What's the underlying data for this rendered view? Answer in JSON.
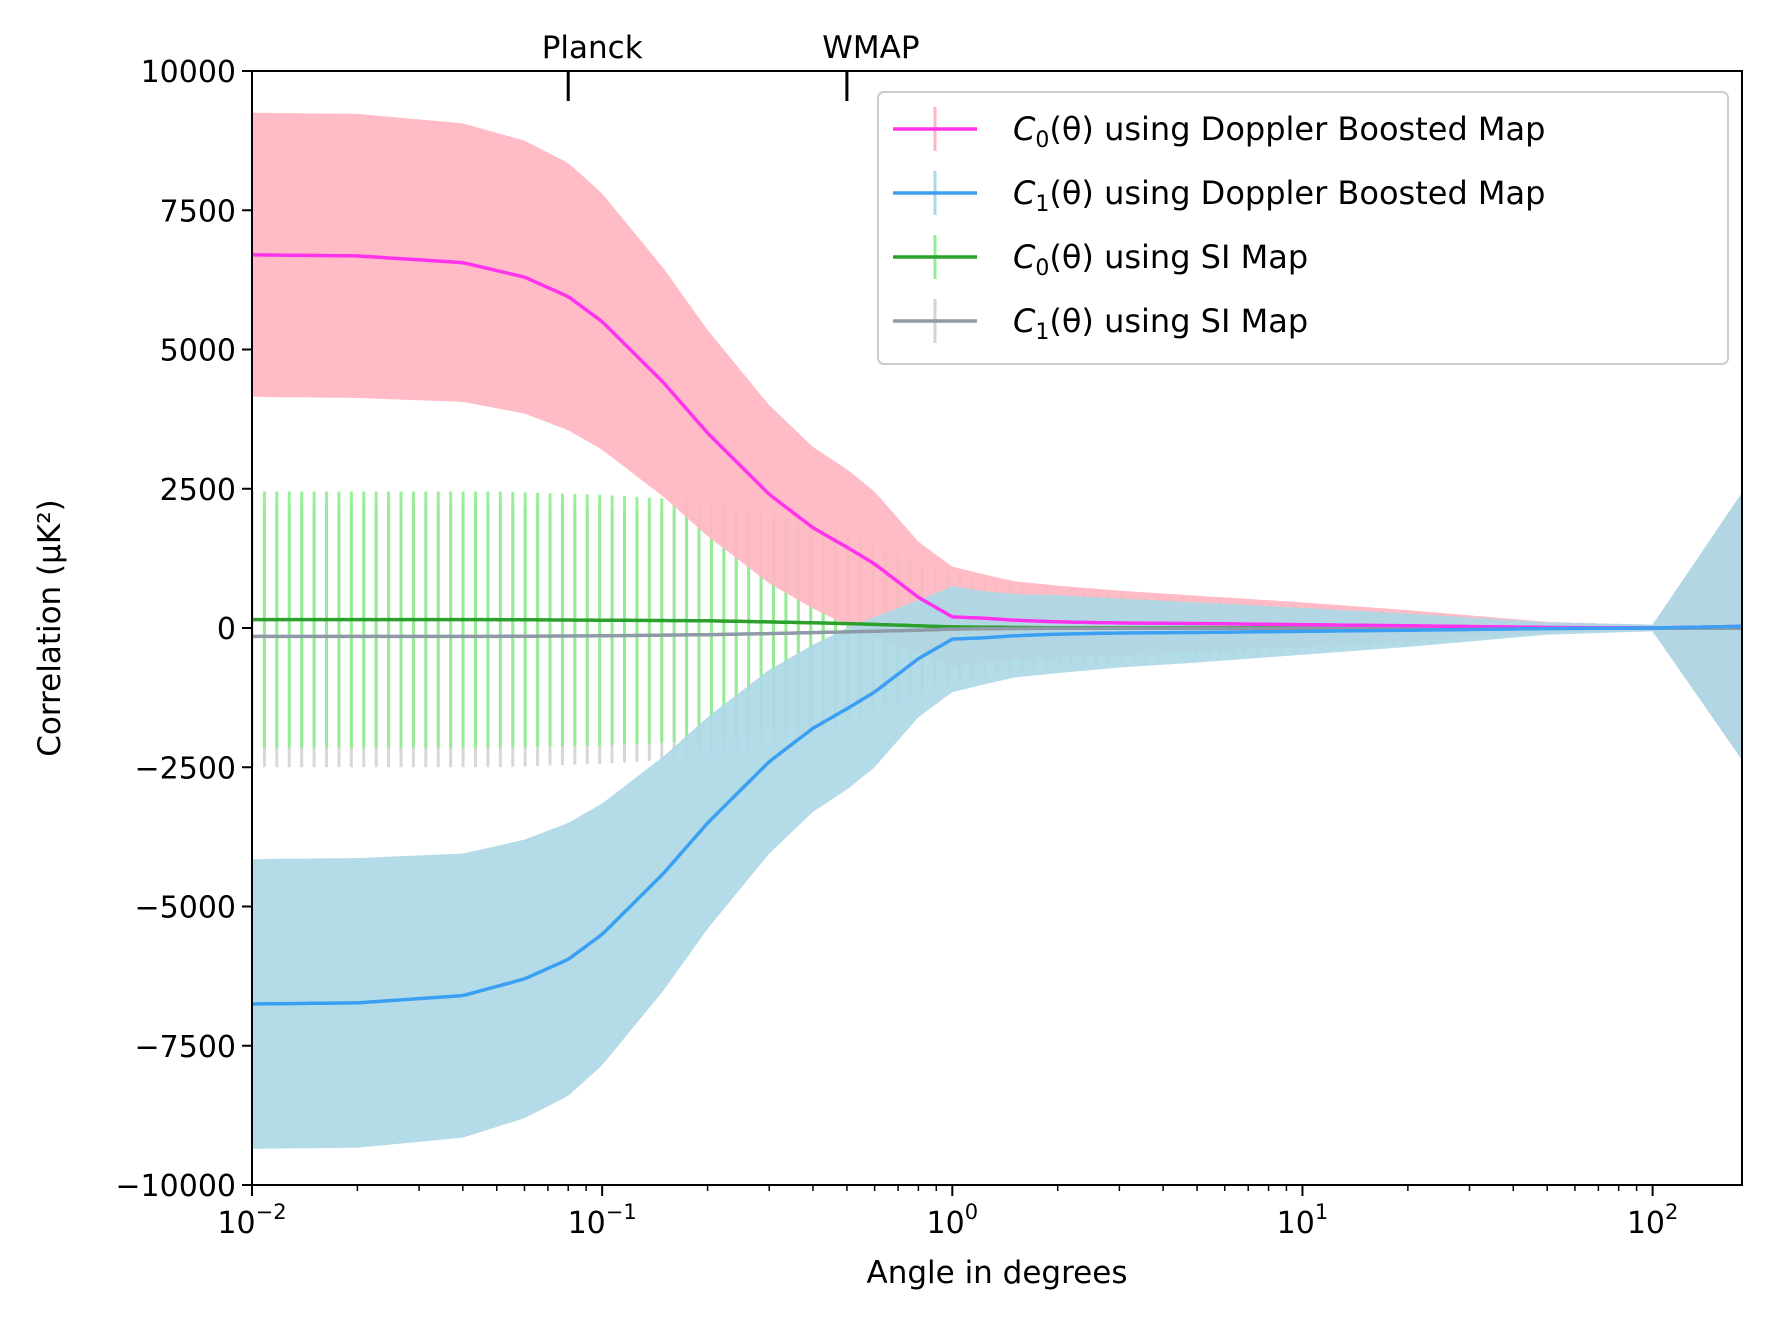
{
  "chart_data": {
    "type": "line",
    "title": "",
    "xlabel": "Angle in degrees",
    "ylabel": "Correlation (μK²)",
    "xscale": "log",
    "xlim": [
      0.01,
      180
    ],
    "ylim": [
      -10000,
      10000
    ],
    "yticks": [
      {
        "value": 10000,
        "label": "10000"
      },
      {
        "value": 7500,
        "label": "7500"
      },
      {
        "value": 5000,
        "label": "5000"
      },
      {
        "value": 2500,
        "label": "2500"
      },
      {
        "value": 0,
        "label": "0"
      },
      {
        "value": -2500,
        "label": "−2500"
      },
      {
        "value": -5000,
        "label": "−5000"
      },
      {
        "value": -7500,
        "label": "−7500"
      },
      {
        "value": -10000,
        "label": "−10000"
      }
    ],
    "xticks": [
      {
        "value": 0.01,
        "base": "10",
        "exp": "−2"
      },
      {
        "value": 0.1,
        "base": "10",
        "exp": "−1"
      },
      {
        "value": 1,
        "base": "10",
        "exp": "0"
      },
      {
        "value": 10,
        "base": "10",
        "exp": "1"
      },
      {
        "value": 100,
        "base": "10",
        "exp": "2"
      }
    ],
    "top_markers": [
      {
        "label": "Planck",
        "x": 0.08
      },
      {
        "label": "WMAP",
        "x": 0.5
      }
    ],
    "legend_position": "top-right",
    "series": [
      {
        "name": "C0(θ) using Doppler Boosted Map",
        "legend_sym": "C",
        "legend_sub": "0",
        "legend_rest": "(θ) using Doppler Boosted Map",
        "color": "#ff33ee",
        "band_color": "#ffb6c1",
        "band_style": "fill",
        "x": [
          0.01,
          0.02,
          0.04,
          0.06,
          0.08,
          0.1,
          0.15,
          0.2,
          0.3,
          0.4,
          0.5,
          0.6,
          0.8,
          1.0,
          1.2,
          1.5,
          2,
          3,
          5,
          10,
          20,
          50,
          100,
          180
        ],
        "y": [
          6700,
          6680,
          6560,
          6300,
          5950,
          5500,
          4400,
          3500,
          2400,
          1800,
          1450,
          1150,
          550,
          200,
          180,
          140,
          110,
          90,
          80,
          60,
          40,
          10,
          0,
          30
        ],
        "y_err": [
          2550,
          2550,
          2500,
          2450,
          2400,
          2300,
          2050,
          1850,
          1600,
          1450,
          1400,
          1300,
          1000,
          900,
          800,
          700,
          650,
          580,
          500,
          400,
          280,
          100,
          50,
          2400
        ]
      },
      {
        "name": "C1(θ) using Doppler Boosted Map",
        "legend_sym": "C",
        "legend_sub": "1",
        "legend_rest": "(θ) using Doppler Boosted Map",
        "color": "#3ba0f2",
        "band_color": "#add8e6",
        "band_style": "fill",
        "x": [
          0.01,
          0.02,
          0.04,
          0.06,
          0.08,
          0.1,
          0.15,
          0.2,
          0.3,
          0.4,
          0.5,
          0.6,
          0.8,
          1.0,
          1.2,
          1.5,
          2,
          3,
          5,
          10,
          20,
          50,
          100,
          180
        ],
        "y": [
          -6750,
          -6730,
          -6600,
          -6300,
          -5950,
          -5500,
          -4400,
          -3500,
          -2400,
          -1800,
          -1450,
          -1150,
          -550,
          -200,
          -180,
          -140,
          -110,
          -90,
          -80,
          -60,
          -40,
          -10,
          0,
          30
        ],
        "y_err": [
          2600,
          2600,
          2550,
          2500,
          2450,
          2350,
          2100,
          1900,
          1650,
          1500,
          1450,
          1350,
          1050,
          950,
          850,
          750,
          700,
          620,
          540,
          420,
          300,
          110,
          60,
          2400
        ]
      },
      {
        "name": "C0(θ) using SI Map",
        "legend_sym": "C",
        "legend_sub": "0",
        "legend_rest": "(θ) using SI Map",
        "color": "#2ca02c",
        "band_color": "#90ee90",
        "band_style": "bars",
        "x": [
          0.01,
          0.02,
          0.05,
          0.1,
          0.2,
          0.3,
          0.5,
          0.8,
          1.0,
          1.5,
          2,
          3,
          5,
          10,
          20,
          50,
          100,
          180
        ],
        "y": [
          150,
          150,
          150,
          140,
          130,
          110,
          80,
          40,
          20,
          10,
          5,
          5,
          5,
          5,
          5,
          0,
          0,
          0
        ],
        "y_err": [
          2300,
          2300,
          2300,
          2250,
          2150,
          1950,
          1600,
          1150,
          950,
          750,
          680,
          600,
          520,
          400,
          280,
          100,
          50,
          2200
        ]
      },
      {
        "name": "C1(θ) using SI Map",
        "legend_sym": "C",
        "legend_sub": "1",
        "legend_rest": "(θ) using SI Map",
        "color": "#8e9aa6",
        "band_color": "#d3d3d3",
        "band_style": "bars",
        "x": [
          0.01,
          0.02,
          0.05,
          0.1,
          0.2,
          0.3,
          0.5,
          0.8,
          1.0,
          1.5,
          2,
          3,
          5,
          10,
          20,
          50,
          100,
          180
        ],
        "y": [
          -150,
          -150,
          -150,
          -140,
          -120,
          -100,
          -70,
          -40,
          -20,
          -10,
          -5,
          -5,
          -5,
          -5,
          -5,
          0,
          0,
          0
        ],
        "y_err": [
          2350,
          2350,
          2350,
          2300,
          2200,
          2000,
          1650,
          1200,
          1000,
          780,
          700,
          620,
          540,
          420,
          300,
          110,
          60,
          2300
        ]
      }
    ]
  }
}
